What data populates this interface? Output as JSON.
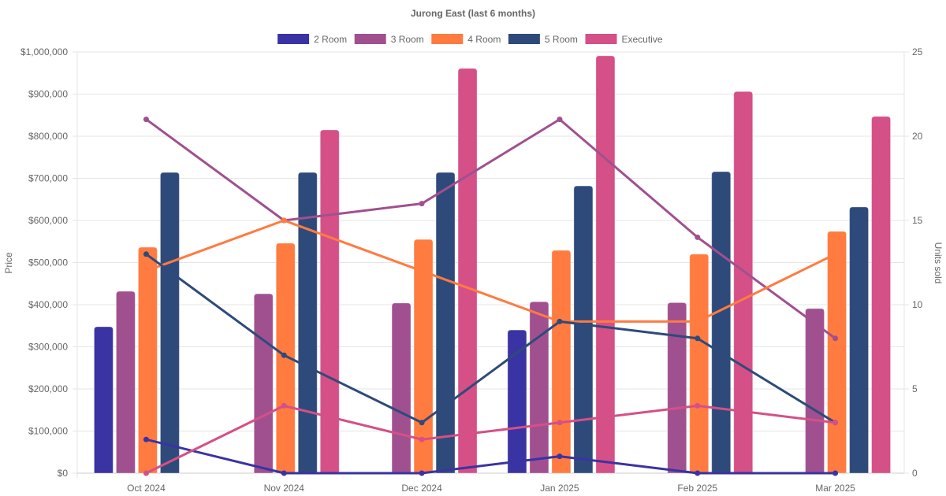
{
  "chart_data": {
    "type": "bar",
    "title": "Jurong East (last 6 months)",
    "categories": [
      "Oct 2024",
      "Nov 2024",
      "Dec 2024",
      "Jan 2025",
      "Feb 2025",
      "Mar 2025"
    ],
    "xlabel": "",
    "ylabel": "Price",
    "y2label": "Units sold",
    "ylim": [
      0,
      1000000
    ],
    "y2lim": [
      0,
      25
    ],
    "yticks": [
      "$0",
      "$100,000",
      "$200,000",
      "$300,000",
      "$400,000",
      "$500,000",
      "$600,000",
      "$700,000",
      "$800,000",
      "$900,000",
      "$1,000,000"
    ],
    "y2ticks": [
      "0",
      "5",
      "10",
      "15",
      "20",
      "25"
    ],
    "grid": true,
    "legend_position": "top",
    "series": [
      {
        "name": "2 Room",
        "color": "#3a33a3",
        "bar_values": [
          347700,
          null,
          null,
          340000,
          null,
          null
        ],
        "line_values": [
          2,
          0,
          0,
          1,
          0,
          0
        ]
      },
      {
        "name": "3 Room",
        "color": "#a0508f",
        "bar_values": [
          431800,
          426000,
          404000,
          407000,
          405000,
          391000
        ],
        "line_values": [
          21,
          15,
          16,
          21,
          14,
          8
        ]
      },
      {
        "name": "4 Room",
        "color": "#ff7b40",
        "bar_values": [
          536400,
          546000,
          555000,
          529000,
          520000,
          574000
        ],
        "line_values": [
          12,
          15,
          12,
          9,
          9,
          13
        ]
      },
      {
        "name": "5 Room",
        "color": "#2e4a7a",
        "bar_values": [
          714000,
          714000,
          714000,
          682000,
          716000,
          632000
        ],
        "line_values": [
          13,
          7,
          3,
          9,
          8,
          3
        ]
      },
      {
        "name": "Executive",
        "color": "#d45087",
        "bar_values": [
          null,
          815000,
          961000,
          991000,
          906000,
          847000
        ],
        "line_values": [
          0,
          4,
          2,
          3,
          4,
          3
        ]
      }
    ]
  }
}
